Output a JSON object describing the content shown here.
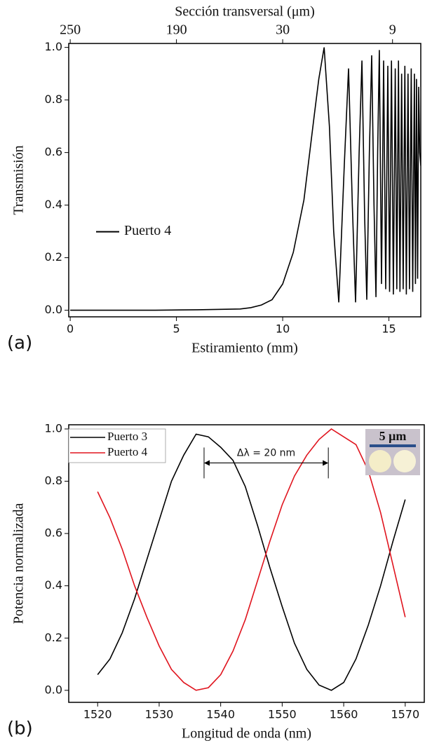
{
  "chart_data": [
    {
      "type": "line",
      "x_label": "Estiramiento (mm)",
      "y_label": "Transmisión",
      "x2_label": "Sección transversal (μm)",
      "panel_label": "(a)",
      "xlim": [
        -0.07,
        16.5
      ],
      "ylim": [
        -0.025,
        1.015
      ],
      "xticks": [
        0,
        5,
        10,
        15
      ],
      "yticks": [
        {
          "value": 0,
          "label": "0.0"
        },
        0.2,
        0.4,
        0.6,
        0.8,
        {
          "value": 1,
          "label": "1.0"
        }
      ],
      "x2ticks": [
        {
          "value": 0,
          "label": "250"
        },
        {
          "value": 5,
          "label": "190"
        },
        {
          "value": 10,
          "label": "30"
        },
        {
          "value": 15.17,
          "label": "9"
        }
      ],
      "legend": "left",
      "x": [
        0,
        2,
        4,
        6,
        8,
        8.5,
        9,
        9.5,
        10,
        10.5,
        11,
        11.5,
        11.7,
        11.95,
        12.2,
        12.4,
        12.64,
        12.9,
        13.1,
        13.28,
        13.43,
        13.6,
        13.73,
        13.86,
        13.96,
        14.08,
        14.19,
        14.3,
        14.39,
        14.47,
        14.55,
        14.65,
        14.75,
        14.85,
        14.95,
        15.03,
        15.12,
        15.21,
        15.3,
        15.37,
        15.45,
        15.52,
        15.6,
        15.67,
        15.75,
        15.82,
        15.9,
        15.97,
        16.05,
        16.12,
        16.2,
        16.25,
        16.3,
        16.35,
        16.4,
        16.45,
        16.5
      ],
      "series": [
        {
          "name": "Puerto 4",
          "color": "#000000",
          "values": [
            0,
            0,
            0,
            0.002,
            0.005,
            0.01,
            0.02,
            0.04,
            0.1,
            0.22,
            0.42,
            0.75,
            0.88,
            1.0,
            0.7,
            0.3,
            0.03,
            0.55,
            0.92,
            0.4,
            0.03,
            0.6,
            0.95,
            0.35,
            0.04,
            0.6,
            0.97,
            0.4,
            0.05,
            0.6,
            0.99,
            0.1,
            0.95,
            0.08,
            0.93,
            0.07,
            0.95,
            0.06,
            0.92,
            0.08,
            0.95,
            0.07,
            0.9,
            0.08,
            0.93,
            0.06,
            0.9,
            0.08,
            0.92,
            0.07,
            0.9,
            0.1,
            0.88,
            0.12,
            0.85,
            0.6,
            0.55
          ]
        }
      ]
    },
    {
      "type": "line",
      "x_label": "Longitud de onda (nm)",
      "y_label": "Potencia normalizada",
      "panel_label": "(b)",
      "xlim": [
        1515.3,
        1573.1
      ],
      "ylim": [
        -0.046,
        1.016
      ],
      "xticks": [
        1520,
        1530,
        1540,
        1550,
        1560,
        1570
      ],
      "yticks": [
        {
          "value": 0,
          "label": "0.0"
        },
        0.2,
        0.4,
        0.6,
        0.8,
        {
          "value": 1,
          "label": "1.0"
        }
      ],
      "legend": "upper left",
      "annotation": {
        "text": "Δλ = 20 nm",
        "x": [
          1537.3,
          1557.5
        ],
        "y": 0.87
      },
      "inset_label": "5 μm",
      "x": [
        1520,
        1522,
        1524,
        1526,
        1528,
        1530,
        1532,
        1534,
        1536,
        1538,
        1540,
        1542,
        1544,
        1546,
        1548,
        1550,
        1552,
        1554,
        1556,
        1558,
        1560,
        1562,
        1564,
        1566,
        1568,
        1570
      ],
      "series": [
        {
          "name": "Puerto 3",
          "color": "#000000",
          "values": [
            0.06,
            0.12,
            0.22,
            0.35,
            0.5,
            0.65,
            0.8,
            0.9,
            0.98,
            0.97,
            0.93,
            0.88,
            0.78,
            0.63,
            0.47,
            0.32,
            0.18,
            0.08,
            0.02,
            0.0,
            0.03,
            0.12,
            0.25,
            0.4,
            0.57,
            0.73
          ]
        },
        {
          "name": "Puerto 4",
          "color": "#e0141e",
          "values": [
            0.76,
            0.66,
            0.54,
            0.4,
            0.28,
            0.17,
            0.08,
            0.03,
            0.0,
            0.01,
            0.06,
            0.15,
            0.27,
            0.42,
            0.57,
            0.71,
            0.82,
            0.9,
            0.96,
            1.0,
            0.97,
            0.94,
            0.84,
            0.68,
            0.48,
            0.28
          ]
        }
      ]
    }
  ]
}
